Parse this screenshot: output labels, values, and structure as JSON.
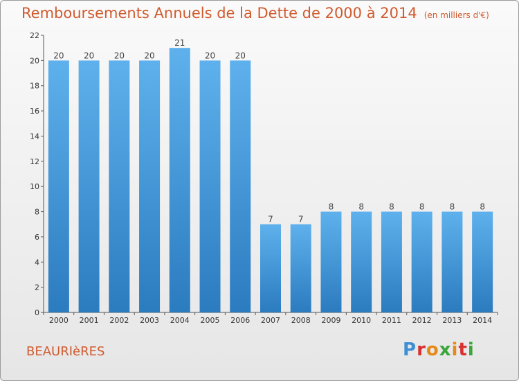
{
  "header": {
    "title": "Remboursements Annuels de la Dette de 2000 à 2014",
    "subtitle": "(en milliers d'€)"
  },
  "footer": {
    "commune": "BEAURIèRES",
    "logo": "Proxiti"
  },
  "colors": {
    "bar_light": "#5eb1ec",
    "bar_dark": "#2b7bbf",
    "title": "#d05a2e"
  },
  "chart_data": {
    "type": "bar",
    "title": "Remboursements Annuels de la Dette de 2000 à 2014",
    "subtitle": "(en milliers d'€)",
    "categories": [
      "2000",
      "2001",
      "2002",
      "2003",
      "2004",
      "2005",
      "2006",
      "2007",
      "2008",
      "2009",
      "2010",
      "2011",
      "2012",
      "2013",
      "2014"
    ],
    "values": [
      20,
      20,
      20,
      20,
      21,
      20,
      20,
      7,
      7,
      8,
      8,
      8,
      8,
      8,
      8
    ],
    "ylim": [
      0,
      22
    ],
    "yticks": [
      0,
      2,
      4,
      6,
      8,
      10,
      12,
      14,
      16,
      18,
      20,
      22
    ],
    "grid": false,
    "legend": "none"
  }
}
